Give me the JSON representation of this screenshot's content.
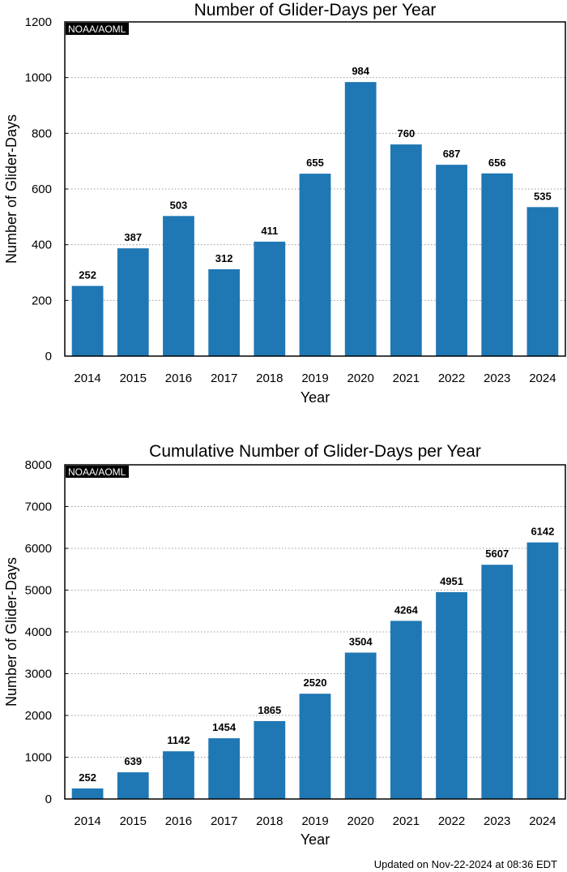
{
  "chart_data": [
    {
      "type": "bar",
      "title": "Number of Glider-Days per Year",
      "xlabel": "Year",
      "ylabel": "Number of Glider-Days",
      "watermark": "NOAA/AOML",
      "categories": [
        "2014",
        "2015",
        "2016",
        "2017",
        "2018",
        "2019",
        "2020",
        "2021",
        "2022",
        "2023",
        "2024"
      ],
      "values": [
        252,
        387,
        503,
        312,
        411,
        655,
        984,
        760,
        687,
        656,
        535
      ],
      "ylim": [
        0,
        1200
      ],
      "yticks": [
        0,
        200,
        400,
        600,
        800,
        1000,
        1200
      ],
      "grid": true,
      "bar_color": "#1f77b4"
    },
    {
      "type": "bar",
      "title": "Cumulative Number of Glider-Days per Year",
      "xlabel": "Year",
      "ylabel": "Number of Glider-Days",
      "watermark": "NOAA/AOML",
      "categories": [
        "2014",
        "2015",
        "2016",
        "2017",
        "2018",
        "2019",
        "2020",
        "2021",
        "2022",
        "2023",
        "2024"
      ],
      "values": [
        252,
        639,
        1142,
        1454,
        1865,
        2520,
        3504,
        4264,
        4951,
        5607,
        6142
      ],
      "ylim": [
        0,
        8000
      ],
      "yticks": [
        0,
        1000,
        2000,
        3000,
        4000,
        5000,
        6000,
        7000,
        8000
      ],
      "grid": true,
      "bar_color": "#1f77b4"
    }
  ],
  "footer": "Updated on Nov-22-2024 at 08:36 EDT"
}
